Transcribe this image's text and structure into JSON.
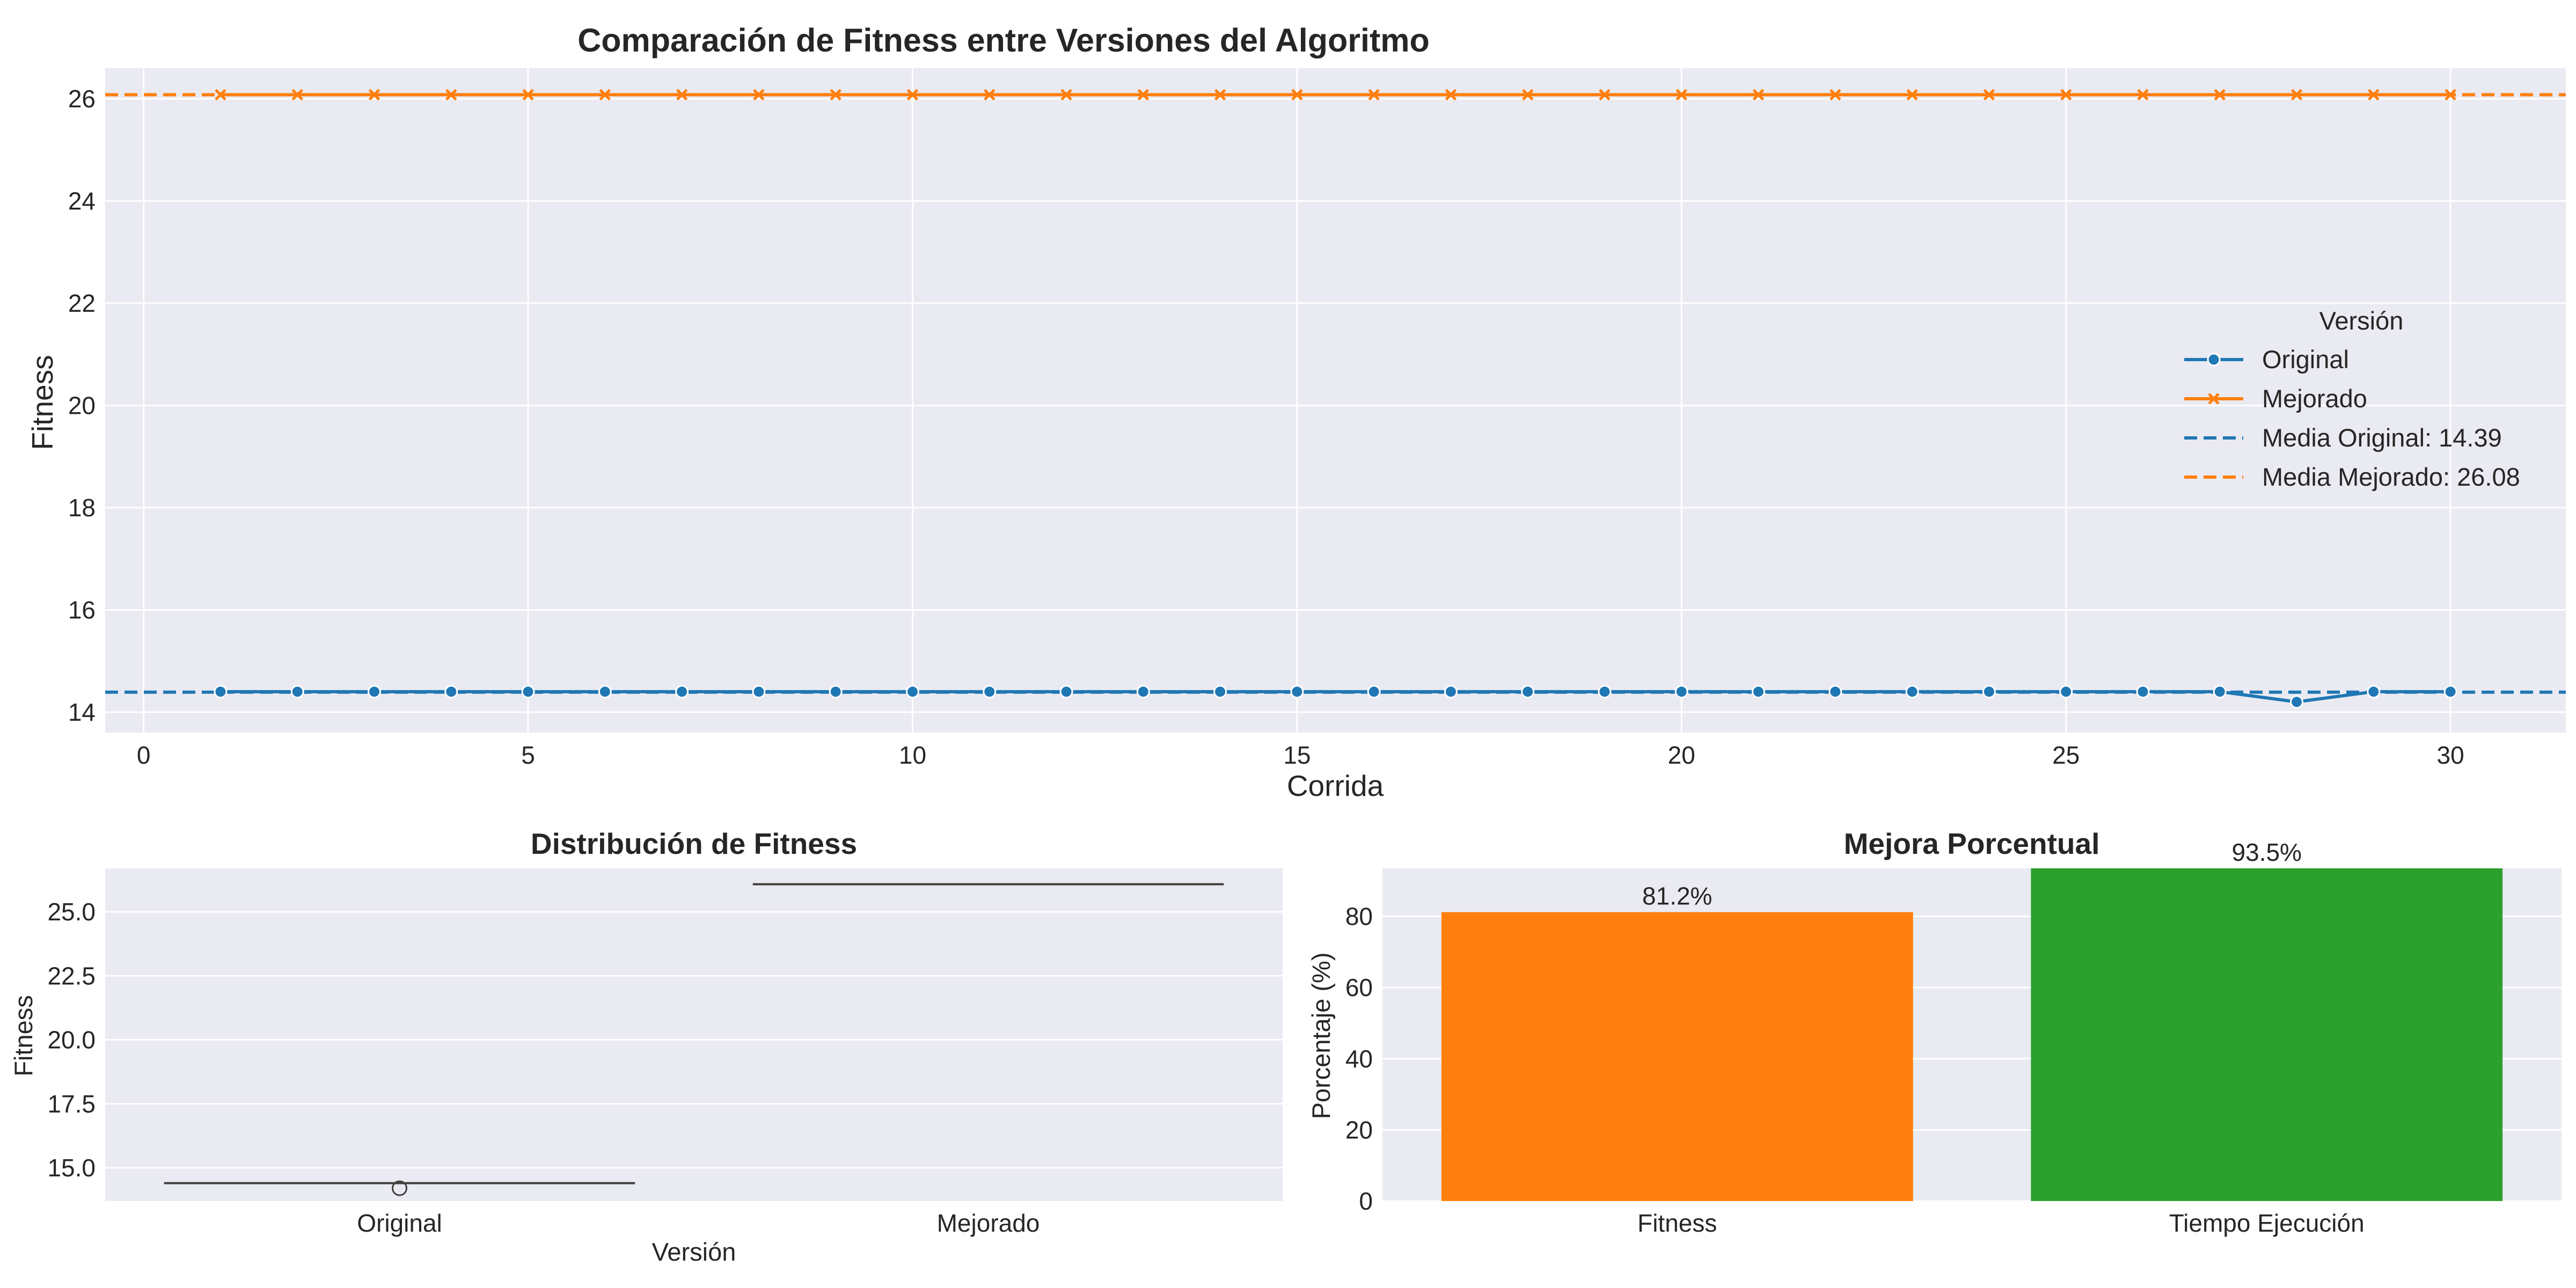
{
  "chart_data": [
    {
      "type": "line",
      "title": "Comparación de Fitness entre Versiones del Algoritmo",
      "xlabel": "Corrida",
      "ylabel": "Fitness",
      "xlim": [
        -0.5,
        31.5
      ],
      "ylim": [
        13.6,
        26.6
      ],
      "xticks": [
        "0",
        "5",
        "10",
        "15",
        "20",
        "25",
        "30"
      ],
      "yticks": [
        "14",
        "16",
        "18",
        "20",
        "22",
        "24",
        "26"
      ],
      "grid": true,
      "legend_title": "Versión",
      "legend_position": "center-right",
      "x": [
        1,
        2,
        3,
        4,
        5,
        6,
        7,
        8,
        9,
        10,
        11,
        12,
        13,
        14,
        15,
        16,
        17,
        18,
        19,
        20,
        21,
        22,
        23,
        24,
        25,
        26,
        27,
        28,
        29,
        30
      ],
      "series": [
        {
          "name": "Original",
          "marker": "circle",
          "color": "#1f77b4",
          "values": [
            14.4,
            14.4,
            14.4,
            14.4,
            14.4,
            14.4,
            14.4,
            14.4,
            14.4,
            14.4,
            14.4,
            14.4,
            14.4,
            14.4,
            14.4,
            14.4,
            14.4,
            14.4,
            14.4,
            14.4,
            14.4,
            14.4,
            14.4,
            14.4,
            14.4,
            14.4,
            14.4,
            14.2,
            14.4,
            14.4
          ]
        },
        {
          "name": "Mejorado",
          "marker": "x",
          "color": "#ff7f0e",
          "values": [
            26.08,
            26.08,
            26.08,
            26.08,
            26.08,
            26.08,
            26.08,
            26.08,
            26.08,
            26.08,
            26.08,
            26.08,
            26.08,
            26.08,
            26.08,
            26.08,
            26.08,
            26.08,
            26.08,
            26.08,
            26.08,
            26.08,
            26.08,
            26.08,
            26.08,
            26.08,
            26.08,
            26.08,
            26.08,
            26.08
          ]
        }
      ],
      "mean_lines": [
        {
          "name": "Media Original: 14.39",
          "value": 14.39,
          "color": "#1f77b4"
        },
        {
          "name": "Media Mejorado: 26.08",
          "value": 26.08,
          "color": "#ff7f0e"
        }
      ]
    },
    {
      "type": "box",
      "title": "Distribución de Fitness",
      "xlabel": "Versión",
      "ylabel": "Fitness",
      "categories": [
        "Original",
        "Mejorado"
      ],
      "ylim": [
        13.7,
        26.7
      ],
      "yticks": [
        "15.0",
        "17.5",
        "20.0",
        "22.5",
        "25.0"
      ],
      "grid": true,
      "boxes": [
        {
          "name": "Original",
          "median": 14.4,
          "outliers": [
            14.2
          ]
        },
        {
          "name": "Mejorado",
          "median": 26.08,
          "outliers": []
        }
      ]
    },
    {
      "type": "bar",
      "title": "Mejora Porcentual",
      "xlabel": "",
      "ylabel": "Porcentaje (%)",
      "categories": [
        "Fitness",
        "Tiempo Ejecución"
      ],
      "values": [
        81.2,
        93.5
      ],
      "data_labels": [
        "81.2%",
        "93.5%"
      ],
      "colors": [
        "#ff7f0e",
        "#2ca02c"
      ],
      "ylim": [
        0,
        93.5
      ],
      "yticks": [
        "0",
        "20",
        "40",
        "60",
        "80"
      ],
      "grid": true
    }
  ],
  "colors": {
    "panel_bg": "#eaeaf2",
    "grid": "#ffffff",
    "text": "#262626"
  }
}
